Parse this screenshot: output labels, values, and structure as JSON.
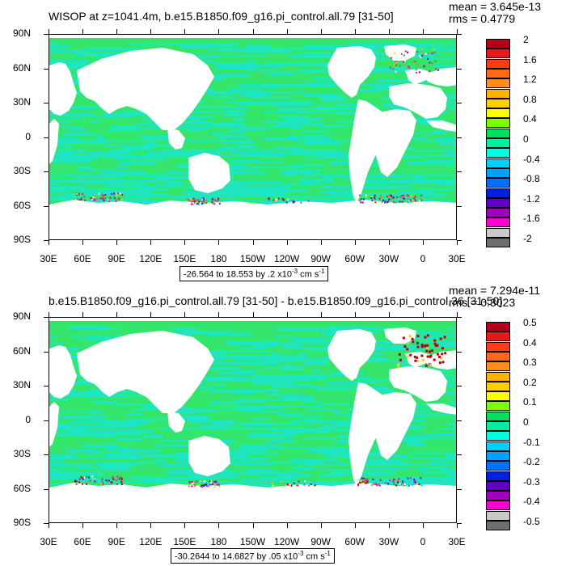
{
  "panels": [
    {
      "title": "WISOP at z=1041.4m, b.e15.B1850.f09_g16.pi_control.all.79 [31-50]",
      "mean": "mean = 3.645e-13",
      "rms": "rms = 0.4779",
      "range": {
        "text": "-26.564 to 18.553 by .2 x10",
        "exp": "-3",
        "units": " cm s",
        "unit_exp": "-1"
      },
      "legend": [
        "2",
        "1.6",
        "1.2",
        "0.8",
        "0.4",
        "0",
        "-0.4",
        "-0.8",
        "-1.2",
        "-1.6",
        "-2"
      ],
      "palette": [
        "#b3001b",
        "#e41a1c",
        "#ff3b1a",
        "#ff6a1a",
        "#ff8f1a",
        "#ffb000",
        "#ffd000",
        "#ffff00",
        "#7dff00",
        "#00e060",
        "#00f0a0",
        "#00ffe0",
        "#00d0ff",
        "#00a0ff",
        "#0070ff",
        "#0020e0",
        "#6000c0",
        "#a000c0",
        "#ff00d0",
        "#c8c8c8",
        "#6e6e6e"
      ]
    },
    {
      "title": "b.e15.B1850.f09_g16.pi_control.all.79 [31-50] - b.e15.B1850.f09_g16.pi_control.36 [31-50]",
      "mean": "mean = 7.294e-11",
      "rms": "rms = 0.3023",
      "range": {
        "text": "-30.2644 to 14.6827 by .05 x10",
        "exp": "-3",
        "units": " cm s",
        "unit_exp": "-1"
      },
      "legend": [
        "0.5",
        "0.4",
        "0.3",
        "0.2",
        "0.1",
        "0",
        "-0.1",
        "-0.2",
        "-0.3",
        "-0.4",
        "-0.5"
      ],
      "palette": [
        "#b3001b",
        "#e41a1c",
        "#ff3b1a",
        "#ff6a1a",
        "#ff8f1a",
        "#ffb000",
        "#ffd000",
        "#ffff00",
        "#7dff00",
        "#00e060",
        "#00f0a0",
        "#00ffe0",
        "#00d0ff",
        "#00a0ff",
        "#0070ff",
        "#0020e0",
        "#6000c0",
        "#a000c0",
        "#ff00d0",
        "#c8c8c8",
        "#6e6e6e"
      ]
    }
  ],
  "y_ticks": [
    "90N",
    "60N",
    "30N",
    "0",
    "30S",
    "60S",
    "90S"
  ],
  "x_ticks": [
    "30E",
    "60E",
    "90E",
    "120E",
    "150E",
    "180",
    "150W",
    "120W",
    "90W",
    "60W",
    "30W",
    "0",
    "30E"
  ],
  "colors": {
    "ocean_main": "#33e56a",
    "ocean_alt": "#1ee6c0",
    "land": "#ffffff",
    "frame": "#000000"
  }
}
